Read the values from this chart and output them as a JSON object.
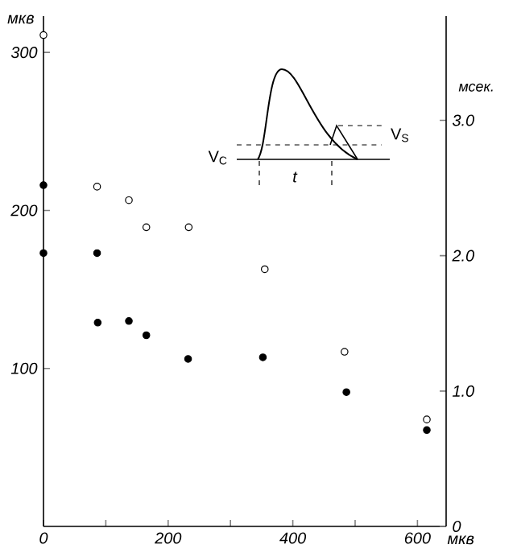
{
  "chart_data": {
    "type": "scatter",
    "xlabel": "мкв",
    "ylabel": "мкв",
    "y2label": "мсек.",
    "xlim": [
      0,
      646
    ],
    "xticks": [
      0,
      {
        "value": 100,
        "label": null
      },
      200,
      {
        "value": 300,
        "label": null
      },
      400,
      {
        "value": 500,
        "label": null
      },
      600
    ],
    "ylim": [
      0,
      323
    ],
    "yticks": [
      100,
      200,
      300
    ],
    "y2lim": [
      0,
      3.77
    ],
    "y2ticks": [
      0,
      {
        "value": 1,
        "label": "1.0"
      },
      {
        "value": 2,
        "label": "2.0"
      },
      {
        "value": 3,
        "label": "3.0"
      }
    ],
    "marker": "circle",
    "series": [
      {
        "color": "#000000",
        "x": [
          0,
          0,
          86,
          87,
          137,
          165,
          232,
          352,
          486,
          615
        ],
        "values": [
          216,
          173,
          173,
          129,
          130,
          121,
          106,
          107,
          85,
          61
        ]
      },
      {
        "color": "#000000",
        "axis": "y2",
        "x": [
          0,
          86,
          137,
          165,
          233,
          355,
          483,
          615
        ],
        "values": [
          3.63,
          2.51,
          2.41,
          2.21,
          2.21,
          1.9,
          1.29,
          0.79
        ]
      }
    ],
    "annotations": [
      "V$_{C}$",
      "V$_{S}$",
      "t"
    ]
  }
}
